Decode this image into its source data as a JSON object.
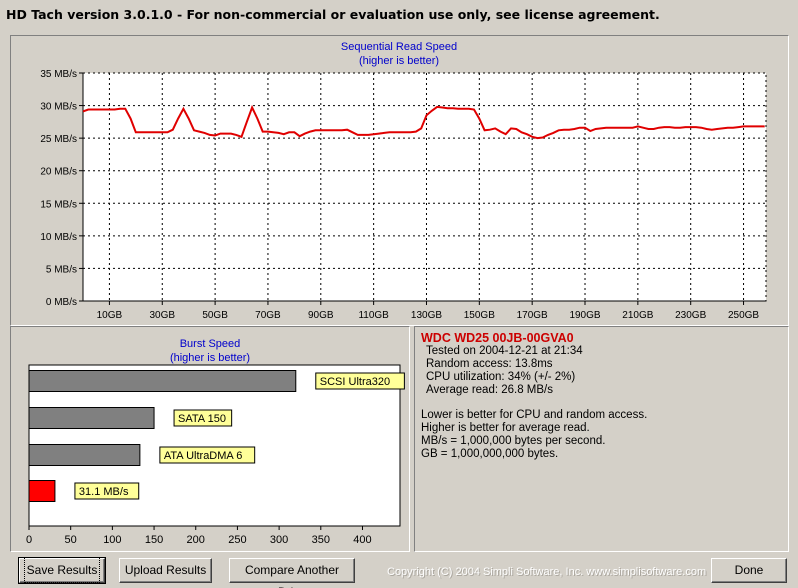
{
  "window": {
    "title": "HD Tach version 3.0.1.0  - For non-commercial or evaluation use only, see license agreement."
  },
  "chart_data": [
    {
      "type": "line",
      "title": "Sequential Read Speed",
      "subtitle": "(higher is better)",
      "xlabel": "",
      "ylabel": "",
      "xlim": [
        0,
        258.5
      ],
      "ylim": [
        0,
        35
      ],
      "y_ticks": [
        0,
        5,
        10,
        15,
        20,
        25,
        30,
        35
      ],
      "y_tick_labels": [
        "0 MB/s",
        "5 MB/s",
        "10 MB/s",
        "15 MB/s",
        "20 MB/s",
        "25 MB/s",
        "30 MB/s",
        "35 MB/s"
      ],
      "x_ticks": [
        10,
        30,
        50,
        70,
        90,
        110,
        130,
        150,
        170,
        190,
        210,
        230,
        250
      ],
      "x_tick_labels": [
        "10GB",
        "30GB",
        "50GB",
        "70GB",
        "90GB",
        "110GB",
        "130GB",
        "150GB",
        "170GB",
        "190GB",
        "210GB",
        "230GB",
        "250GB"
      ],
      "grid": true,
      "series": [
        {
          "color": "#e00000",
          "x": [
            0,
            2,
            4,
            6,
            8,
            10,
            12,
            14,
            16,
            18,
            20,
            22,
            24,
            26,
            28,
            30,
            32,
            34,
            36,
            38,
            40,
            42,
            44,
            46,
            48,
            50,
            52,
            54,
            56,
            58,
            60,
            62,
            64,
            66,
            68,
            70,
            72,
            74,
            76,
            78,
            80,
            82,
            84,
            86,
            88,
            90,
            92,
            94,
            96,
            98,
            100,
            102,
            104,
            106,
            108,
            110,
            112,
            114,
            116,
            118,
            120,
            122,
            124,
            126,
            128,
            130,
            132,
            134,
            136,
            138,
            140,
            142,
            144,
            146,
            148,
            150,
            152,
            154,
            156,
            158,
            160,
            162,
            164,
            166,
            168,
            170,
            172,
            174,
            176,
            178,
            180,
            182,
            184,
            186,
            188,
            190,
            192,
            194,
            196,
            198,
            200,
            202,
            204,
            206,
            208,
            210,
            212,
            214,
            216,
            218,
            220,
            222,
            224,
            226,
            228,
            230,
            232,
            234,
            236,
            238,
            240,
            242,
            244,
            246,
            248,
            250,
            252,
            254,
            256,
            258
          ],
          "values": [
            29.1,
            29.4,
            29.4,
            29.4,
            29.4,
            29.4,
            29.4,
            29.5,
            29.5,
            28.0,
            25.9,
            25.9,
            25.9,
            25.9,
            25.9,
            25.9,
            25.9,
            26.3,
            28.0,
            29.5,
            28.0,
            26.2,
            26.0,
            25.8,
            25.5,
            25.4,
            25.7,
            25.7,
            25.7,
            25.5,
            25.2,
            27.5,
            29.7,
            28.0,
            26.0,
            26.0,
            25.9,
            25.8,
            25.6,
            25.9,
            25.9,
            25.3,
            25.7,
            26.0,
            26.2,
            26.2,
            26.2,
            26.2,
            26.2,
            26.2,
            26.3,
            25.9,
            25.5,
            25.5,
            25.5,
            25.6,
            25.7,
            25.8,
            25.9,
            25.9,
            25.9,
            25.9,
            25.9,
            26.0,
            26.5,
            28.5,
            29.2,
            29.8,
            29.7,
            29.6,
            29.6,
            29.5,
            29.5,
            29.5,
            29.4,
            28.0,
            26.2,
            26.3,
            26.5,
            26.0,
            25.6,
            26.5,
            26.4,
            25.9,
            25.6,
            25.2,
            25.0,
            25.1,
            25.5,
            25.8,
            26.2,
            26.3,
            26.3,
            26.4,
            26.6,
            26.6,
            26.1,
            26.4,
            26.5,
            26.6,
            26.6,
            26.6,
            26.6,
            26.6,
            26.6,
            26.8,
            26.6,
            26.4,
            26.4,
            26.6,
            26.7,
            26.7,
            26.6,
            26.6,
            26.7,
            26.7,
            26.7,
            26.6,
            26.4,
            26.3,
            26.4,
            26.5,
            26.6,
            26.6,
            26.7,
            26.8,
            26.8,
            26.8,
            26.8,
            26.8
          ]
        }
      ]
    },
    {
      "type": "bar",
      "orientation": "horizontal",
      "title": "Burst Speed",
      "subtitle": "(higher is better)",
      "xlabel": "",
      "ylabel": "",
      "xlim": [
        0,
        445
      ],
      "x_ticks": [
        0,
        50,
        100,
        150,
        200,
        250,
        300,
        350,
        400
      ],
      "x_tick_labels": [
        "0",
        "50",
        "100",
        "150",
        "200",
        "250",
        "300",
        "350",
        "400"
      ],
      "grid": false,
      "categories": [
        "SCSI Ultra320",
        "SATA 150",
        "ATA UltraDMA 6",
        "31.1 MB/s"
      ],
      "values": [
        320,
        150,
        133,
        31.1
      ],
      "colors": [
        "#808080",
        "#808080",
        "#808080",
        "#ff0000"
      ],
      "label_bg": "#ffff99"
    }
  ],
  "info": {
    "drive": "WDC WD25 00JB-00GVA0",
    "drive_color": "#cc0000",
    "tested": "Tested on 2004-12-21 at 21:34",
    "random_access": "Random access: 13.8ms",
    "cpu": "CPU utilization: 34% (+/- 2%)",
    "average_read": "Average read: 26.8 MB/s",
    "note1": "Lower is better for CPU and random access.",
    "note2": "Higher is better for average read.",
    "note3": "MB/s = 1,000,000 bytes per second.",
    "note4": "GB = 1,000,000,000 bytes."
  },
  "buttons": {
    "save": "Save Results",
    "upload": "Upload Results",
    "compare": "Compare Another Drive",
    "done": "Done"
  },
  "copyright": "Copyright (C) 2004 Simpli Software, Inc. www.simplisoftware.com"
}
